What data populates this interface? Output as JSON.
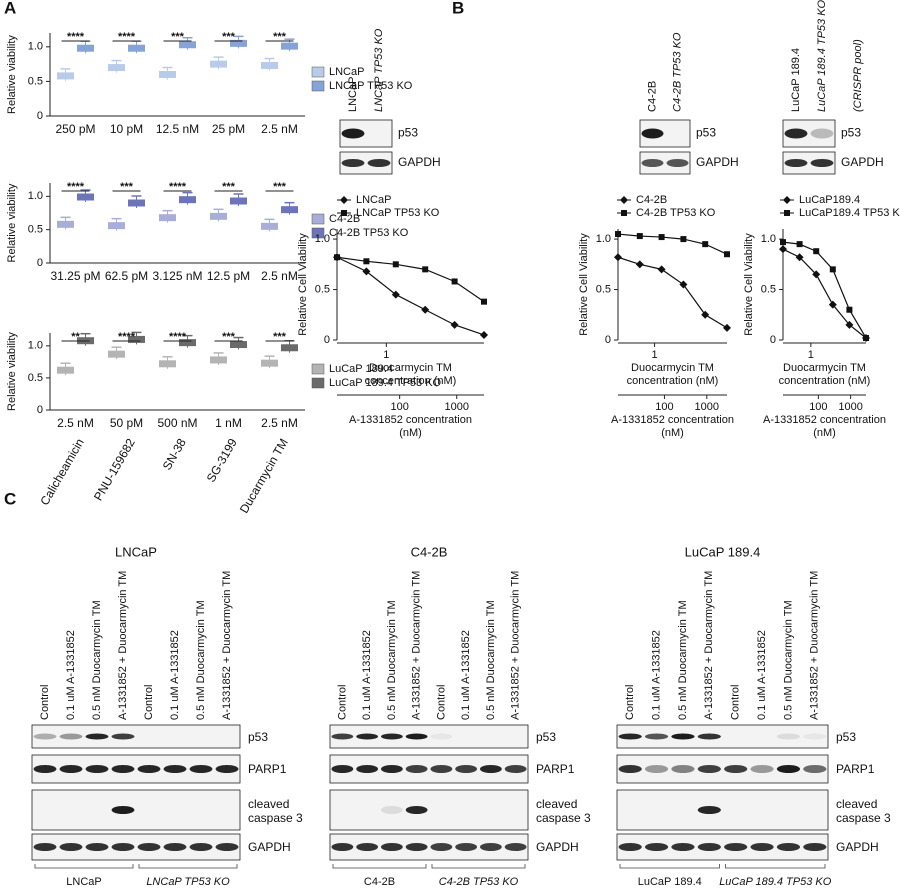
{
  "panel_labels": [
    "A",
    "B",
    "C"
  ],
  "chart_data": [
    {
      "type": "box",
      "ylabel": "Relative viability",
      "categories": [
        "250 pM",
        "10 pM",
        "12.5 nM",
        "25 pM",
        "2.5 nM"
      ],
      "significance": [
        "****",
        "****",
        "***",
        "***",
        "***"
      ],
      "series": [
        {
          "name": "LNCaP",
          "color": "#b9cbea",
          "values": [
            0.58,
            0.7,
            0.6,
            0.75,
            0.73
          ]
        },
        {
          "name": "LNCaP TP53 KO",
          "color": "#86a3d8",
          "values": [
            0.98,
            0.98,
            1.03,
            1.05,
            1.01
          ]
        }
      ],
      "ylim": [
        0,
        1.2
      ],
      "yticks": [
        0,
        0.5,
        {
          "value": 1,
          "label": "1.0"
        }
      ]
    },
    {
      "type": "box",
      "ylabel": "Relative viability",
      "categories": [
        "31.25 pM",
        "62.5 pM",
        "3.125 nM",
        "12.5 pM",
        "2.5 nM"
      ],
      "significance": [
        "****",
        "***",
        "****",
        "***",
        "***"
      ],
      "series": [
        {
          "name": "C4-2B",
          "color": "#a8aed8",
          "values": [
            0.58,
            0.56,
            0.68,
            0.7,
            0.55
          ]
        },
        {
          "name": "C4-2B TP53 KO",
          "color": "#6e74b9",
          "values": [
            0.99,
            0.9,
            0.95,
            0.93,
            0.8
          ]
        }
      ],
      "ylim": [
        0,
        1.2
      ],
      "yticks": [
        0,
        0.5,
        {
          "value": 1,
          "label": "1.0"
        }
      ]
    },
    {
      "type": "box",
      "ylabel": "Relative viability",
      "categories": [
        "2.5 nM",
        "50 pM",
        "500 nM",
        "1 nM",
        "2.5 nM"
      ],
      "drugs": [
        "Calicheamicin",
        "PNU-159682",
        "SN-38",
        "SG-3199",
        "Ducarmycin TM"
      ],
      "significance": [
        "**",
        "****",
        "****",
        "***",
        "***"
      ],
      "series": [
        {
          "name": "LuCaP 189.4",
          "color": "#b4b4b4",
          "values": [
            0.62,
            0.87,
            0.72,
            0.78,
            0.73
          ]
        },
        {
          "name": "LuCaP 189.4 TP53 KO",
          "color": "#6a6a6a",
          "values": [
            1.08,
            1.1,
            1.05,
            1.02,
            0.97
          ]
        }
      ],
      "ylim": [
        0,
        1.2
      ],
      "yticks": [
        0,
        0.5,
        {
          "value": 1,
          "label": "1.0"
        }
      ]
    },
    {
      "type": "line",
      "ylabel": "Relative Cell Viability",
      "xlabel": "Duocarmycin TM concentration (nM)",
      "x2label": "A-1331852 concentration (nM)",
      "log_x": true,
      "x": [
        0.3125,
        0.625,
        1.25,
        2.5,
        5,
        10
      ],
      "series": [
        {
          "name": "LNCaP",
          "color": "#111111",
          "marker": "diamond",
          "values": [
            0.82,
            0.68,
            0.45,
            0.3,
            0.15,
            0.05
          ]
        },
        {
          "name": "LNCaP TP53 KO",
          "color": "#111111",
          "marker": "square",
          "values": [
            0.82,
            0.78,
            0.75,
            0.7,
            0.58,
            0.38
          ]
        }
      ],
      "xlim": [
        0.3125,
        10
      ],
      "xticks": [
        1
      ],
      "x2lim": [
        8,
        3000
      ],
      "x2ticks": [
        100,
        1000
      ],
      "ylim": [
        0,
        1.1
      ],
      "yticks": [
        0,
        0.5,
        {
          "value": 1,
          "label": "1.0"
        }
      ]
    },
    {
      "type": "line",
      "ylabel": "Relative Cell Viability",
      "xlabel": "Duocarmycin TM concentration (nM)",
      "x2label": "A-1331852 concentration (nM)",
      "log_x": true,
      "x": [
        0.3125,
        0.625,
        1.25,
        2.5,
        5,
        10
      ],
      "series": [
        {
          "name": "C4-2B",
          "color": "#111111",
          "marker": "diamond",
          "values": [
            0.82,
            0.75,
            0.7,
            0.55,
            0.25,
            0.12
          ]
        },
        {
          "name": "C4-2B TP53 KO",
          "color": "#111111",
          "marker": "square",
          "values": [
            1.05,
            1.03,
            1.02,
            1.0,
            0.95,
            0.85
          ]
        }
      ],
      "xlim": [
        0.3125,
        10
      ],
      "xticks": [
        1
      ],
      "x2lim": [
        8,
        3000
      ],
      "x2ticks": [
        100,
        1000
      ],
      "ylim": [
        0,
        1.1
      ],
      "yticks": [
        0,
        0.5,
        {
          "value": 1,
          "label": "1.0"
        }
      ]
    },
    {
      "type": "line",
      "ylabel": "Relative Cell Viability",
      "xlabel": "Duocarmycin TM concentration (nM)",
      "x2label": "A-1331852 concentration (nM)",
      "log_x": true,
      "x": [
        0.3125,
        0.625,
        1.25,
        2.5,
        5,
        10
      ],
      "series": [
        {
          "name": "LuCaP189.4",
          "color": "#111111",
          "marker": "diamond",
          "values": [
            0.9,
            0.82,
            0.65,
            0.35,
            0.15,
            0.02
          ]
        },
        {
          "name": "LuCaP189.4 TP53 KO",
          "color": "#111111",
          "marker": "square",
          "values": [
            0.97,
            0.95,
            0.88,
            0.7,
            0.3,
            0.02
          ]
        }
      ],
      "xlim": [
        0.3125,
        10
      ],
      "xticks": [
        1
      ],
      "x2lim": [
        8,
        3000
      ],
      "x2ticks": [
        100,
        1000
      ],
      "ylim": [
        0,
        1.1
      ],
      "yticks": [
        0,
        0.5,
        {
          "value": 1,
          "label": "1.0"
        }
      ]
    }
  ],
  "blots_b": [
    {
      "lanes": [
        "LNCaP",
        "LNCaP TP53 KO"
      ],
      "proteins": [
        "p53",
        "GAPDH"
      ]
    },
    {
      "lanes": [
        "C4-2B",
        "C4-2B TP53 KO"
      ],
      "proteins": [
        "p53",
        "GAPDH"
      ]
    },
    {
      "lanes": [
        "LuCaP 189.4",
        "LuCaP 189.4 TP53 KO",
        "(CRISPR pool)"
      ],
      "proteins": [
        "p53",
        "GAPDH"
      ]
    }
  ],
  "blots_c": {
    "rows": [
      "p53",
      "PARP1",
      "cleaved caspase 3",
      "GAPDH"
    ],
    "groups": [
      {
        "title": "LNCaP",
        "lanes": [
          "Control",
          "0.1 uM A-1331852",
          "0.5 nM Duocarmycin TM",
          "A-1331852 + Duocarmycin TM",
          "Control",
          "0.1 uM A-1331852",
          "0.5 nM Duocarmycin TM",
          "A-1331852 + Duocarmycin TM"
        ],
        "subgroups": [
          "LNCaP",
          "LNCaP TP53 KO"
        ]
      },
      {
        "title": "C4-2B",
        "lanes": [
          "Control",
          "0.1 uM A-1331852",
          "0.5 nM Duocarmycin TM",
          "A-1331852 + Duocarmycin TM",
          "Control",
          "0.1 uM A-1331852",
          "0.5 nM Duocarmycin TM",
          "A-1331852 + Duocarmycin TM"
        ],
        "subgroups": [
          "C4-2B",
          "C4-2B TP53 KO"
        ]
      },
      {
        "title": "LuCaP 189.4",
        "lanes": [
          "Control",
          "0.1 uM A-1331852",
          "0.5 nM Duocarmycin TM",
          "A-1331852 + Duocarmycin TM",
          "Control",
          "0.1 uM A-1331852",
          "0.5 nM Duocarmycin TM",
          "A-1331852 + Duocarmycin TM"
        ],
        "subgroups": [
          "LuCaP 189.4",
          "LuCaP 189.4 TP53 KO"
        ]
      }
    ]
  }
}
